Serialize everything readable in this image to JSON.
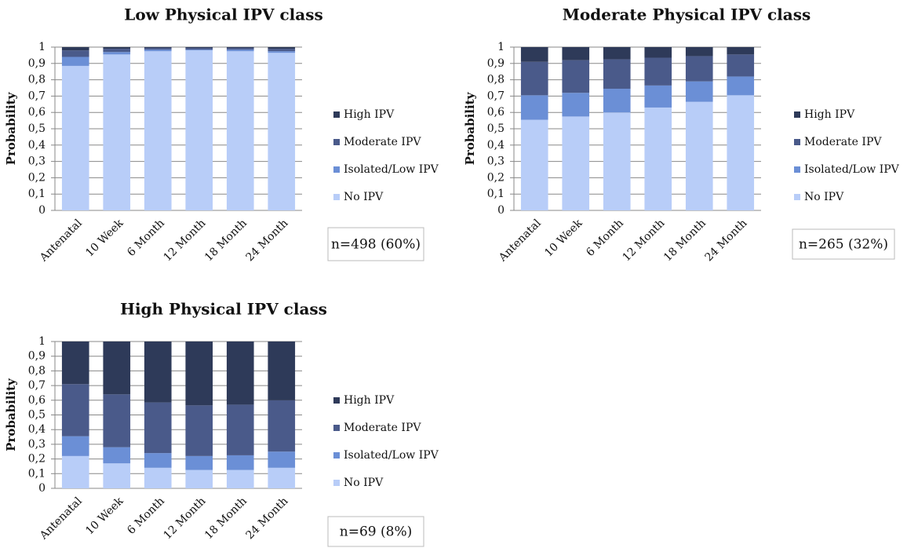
{
  "chart_data": [
    {
      "type": "bar",
      "stacked": true,
      "title": "Low Physical IPV class",
      "ylabel": "Probability",
      "annotation": "n=498 (60%)",
      "grid": true,
      "categories": [
        "Antenatal",
        "10 Week",
        "6 Month",
        "12 Month",
        "18 Month",
        "24 Month"
      ],
      "ylim": [
        0,
        1
      ],
      "yticks": [
        0,
        {
          "value": 0.1,
          "label": "0,1"
        },
        {
          "value": 0.2,
          "label": "0,2"
        },
        {
          "value": 0.3,
          "label": "0,3"
        },
        {
          "value": 0.4,
          "label": "0,4"
        },
        {
          "value": 0.5,
          "label": "0,5"
        },
        {
          "value": 0.6,
          "label": "0,6"
        },
        {
          "value": 0.7,
          "label": "0,7"
        },
        {
          "value": 0.8,
          "label": "0,8"
        },
        {
          "value": 0.9,
          "label": "0,9"
        },
        1
      ],
      "series": [
        {
          "name": "No IPV",
          "color": "#b8cdf8",
          "values": [
            0.885,
            0.955,
            0.975,
            0.98,
            0.975,
            0.965
          ]
        },
        {
          "name": "Isolated/Low IPV",
          "color": "#6b8fd6",
          "values": [
            0.055,
            0.015,
            0.01,
            0.005,
            0.01,
            0.01
          ]
        },
        {
          "name": "Moderate IPV",
          "color": "#4a5a8a",
          "values": [
            0.04,
            0.02,
            0.01,
            0.01,
            0.01,
            0.015
          ]
        },
        {
          "name": "High IPV",
          "color": "#2e3a59",
          "values": [
            0.02,
            0.01,
            0.005,
            0.005,
            0.005,
            0.01
          ]
        }
      ]
    },
    {
      "type": "bar",
      "stacked": true,
      "title": "Moderate Physical IPV class",
      "ylabel": "Probability",
      "annotation": "n=265 (32%)",
      "grid": true,
      "categories": [
        "Antenatal",
        "10 Week",
        "6 Month",
        "12 Month",
        "18 Month",
        "24 Month"
      ],
      "ylim": [
        0,
        1
      ],
      "yticks": [
        0,
        {
          "value": 0.1,
          "label": "0,1"
        },
        {
          "value": 0.2,
          "label": "0,2"
        },
        {
          "value": 0.3,
          "label": "0,3"
        },
        {
          "value": 0.4,
          "label": "0,4"
        },
        {
          "value": 0.5,
          "label": "0,5"
        },
        {
          "value": 0.6,
          "label": "0,6"
        },
        {
          "value": 0.7,
          "label": "0,7"
        },
        {
          "value": 0.8,
          "label": "0,8"
        },
        {
          "value": 0.9,
          "label": "0,9"
        },
        1
      ],
      "series": [
        {
          "name": "No IPV",
          "color": "#b8cdf8",
          "values": [
            0.555,
            0.575,
            0.6,
            0.63,
            0.665,
            0.705
          ]
        },
        {
          "name": "Isolated/Low IPV",
          "color": "#6b8fd6",
          "values": [
            0.15,
            0.145,
            0.145,
            0.135,
            0.125,
            0.115
          ]
        },
        {
          "name": "Moderate IPV",
          "color": "#4a5a8a",
          "values": [
            0.205,
            0.2,
            0.18,
            0.17,
            0.155,
            0.135
          ]
        },
        {
          "name": "High IPV",
          "color": "#2e3a59",
          "values": [
            0.09,
            0.08,
            0.075,
            0.065,
            0.055,
            0.045
          ]
        }
      ]
    },
    {
      "type": "bar",
      "stacked": true,
      "title": "High Physical IPV class",
      "ylabel": "Probability",
      "annotation": "n=69 (8%)",
      "grid": true,
      "categories": [
        "Antenatal",
        "10 Week",
        "6 Month",
        "12 Month",
        "18 Month",
        "24 Month"
      ],
      "ylim": [
        0,
        1
      ],
      "yticks": [
        0,
        {
          "value": 0.1,
          "label": "0,1"
        },
        {
          "value": 0.2,
          "label": "0,2"
        },
        {
          "value": 0.3,
          "label": "0,3"
        },
        {
          "value": 0.4,
          "label": "0,4"
        },
        {
          "value": 0.5,
          "label": "0,5"
        },
        {
          "value": 0.6,
          "label": "0,6"
        },
        {
          "value": 0.7,
          "label": "0,7"
        },
        {
          "value": 0.8,
          "label": "0,8"
        },
        {
          "value": 0.9,
          "label": "0,9"
        },
        1
      ],
      "series": [
        {
          "name": "No IPV",
          "color": "#b8cdf8",
          "values": [
            0.22,
            0.17,
            0.14,
            0.125,
            0.125,
            0.14
          ]
        },
        {
          "name": "Isolated/Low IPV",
          "color": "#6b8fd6",
          "values": [
            0.135,
            0.11,
            0.1,
            0.095,
            0.1,
            0.11
          ]
        },
        {
          "name": "Moderate IPV",
          "color": "#4a5a8a",
          "values": [
            0.355,
            0.36,
            0.345,
            0.345,
            0.345,
            0.35
          ]
        },
        {
          "name": "High IPV",
          "color": "#2e3a59",
          "values": [
            0.29,
            0.36,
            0.415,
            0.435,
            0.43,
            0.4
          ]
        }
      ]
    }
  ]
}
